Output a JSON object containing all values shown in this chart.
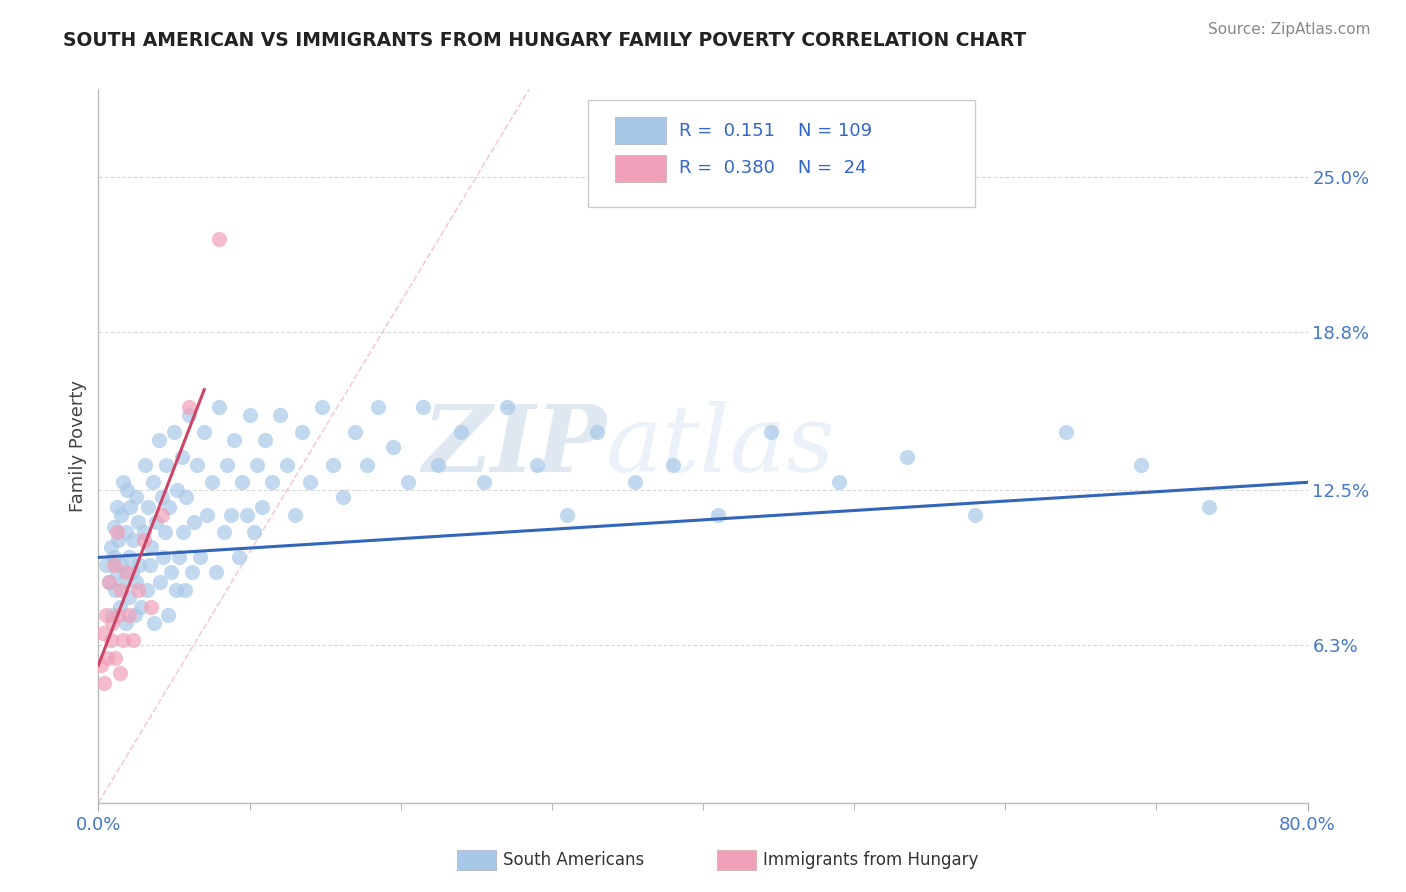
{
  "title": "SOUTH AMERICAN VS IMMIGRANTS FROM HUNGARY FAMILY POVERTY CORRELATION CHART",
  "source": "Source: ZipAtlas.com",
  "ylabel": "Family Poverty",
  "xlim": [
    0.0,
    0.8
  ],
  "ylim": [
    0.0,
    0.285
  ],
  "ytick_labels_right": [
    "25.0%",
    "18.8%",
    "12.5%",
    "6.3%"
  ],
  "ytick_values_right": [
    0.25,
    0.188,
    0.125,
    0.063
  ],
  "blue_color": "#a8c8e8",
  "pink_color": "#f0a0b8",
  "blue_line_color": "#3366bb",
  "pink_line_color": "#cc4466",
  "diagonal_line_color": "#f0c0cc",
  "watermark_color": "#d0dff0",
  "background_color": "#ffffff",
  "grid_color": "#d0d0d0",
  "title_color": "#222222",
  "blue_x": [
    0.005,
    0.007,
    0.008,
    0.009,
    0.01,
    0.01,
    0.011,
    0.012,
    0.012,
    0.013,
    0.014,
    0.015,
    0.015,
    0.016,
    0.017,
    0.018,
    0.018,
    0.019,
    0.02,
    0.02,
    0.021,
    0.022,
    0.023,
    0.024,
    0.025,
    0.025,
    0.026,
    0.027,
    0.028,
    0.03,
    0.031,
    0.032,
    0.033,
    0.034,
    0.035,
    0.036,
    0.037,
    0.038,
    0.04,
    0.041,
    0.042,
    0.043,
    0.044,
    0.045,
    0.046,
    0.047,
    0.048,
    0.05,
    0.051,
    0.052,
    0.053,
    0.055,
    0.056,
    0.057,
    0.058,
    0.06,
    0.062,
    0.063,
    0.065,
    0.067,
    0.07,
    0.072,
    0.075,
    0.078,
    0.08,
    0.083,
    0.085,
    0.088,
    0.09,
    0.093,
    0.095,
    0.098,
    0.1,
    0.103,
    0.105,
    0.108,
    0.11,
    0.115,
    0.12,
    0.125,
    0.13,
    0.135,
    0.14,
    0.148,
    0.155,
    0.162,
    0.17,
    0.178,
    0.185,
    0.195,
    0.205,
    0.215,
    0.225,
    0.24,
    0.255,
    0.27,
    0.29,
    0.31,
    0.33,
    0.355,
    0.38,
    0.41,
    0.445,
    0.49,
    0.535,
    0.58,
    0.64,
    0.69,
    0.735
  ],
  "blue_y": [
    0.095,
    0.088,
    0.102,
    0.075,
    0.11,
    0.098,
    0.085,
    0.118,
    0.092,
    0.105,
    0.078,
    0.115,
    0.095,
    0.128,
    0.088,
    0.108,
    0.072,
    0.125,
    0.098,
    0.082,
    0.118,
    0.092,
    0.105,
    0.075,
    0.122,
    0.088,
    0.112,
    0.095,
    0.078,
    0.108,
    0.135,
    0.085,
    0.118,
    0.095,
    0.102,
    0.128,
    0.072,
    0.112,
    0.145,
    0.088,
    0.122,
    0.098,
    0.108,
    0.135,
    0.075,
    0.118,
    0.092,
    0.148,
    0.085,
    0.125,
    0.098,
    0.138,
    0.108,
    0.085,
    0.122,
    0.155,
    0.092,
    0.112,
    0.135,
    0.098,
    0.148,
    0.115,
    0.128,
    0.092,
    0.158,
    0.108,
    0.135,
    0.115,
    0.145,
    0.098,
    0.128,
    0.115,
    0.155,
    0.108,
    0.135,
    0.118,
    0.145,
    0.128,
    0.155,
    0.135,
    0.115,
    0.148,
    0.128,
    0.158,
    0.135,
    0.122,
    0.148,
    0.135,
    0.158,
    0.142,
    0.128,
    0.158,
    0.135,
    0.148,
    0.128,
    0.158,
    0.135,
    0.115,
    0.148,
    0.128,
    0.135,
    0.115,
    0.148,
    0.128,
    0.138,
    0.115,
    0.148,
    0.135,
    0.118
  ],
  "pink_x": [
    0.002,
    0.003,
    0.004,
    0.005,
    0.006,
    0.007,
    0.008,
    0.009,
    0.01,
    0.011,
    0.012,
    0.013,
    0.014,
    0.015,
    0.016,
    0.018,
    0.02,
    0.023,
    0.026,
    0.03,
    0.035,
    0.042,
    0.06,
    0.08
  ],
  "pink_y": [
    0.055,
    0.068,
    0.048,
    0.075,
    0.058,
    0.088,
    0.065,
    0.072,
    0.095,
    0.058,
    0.108,
    0.075,
    0.052,
    0.085,
    0.065,
    0.092,
    0.075,
    0.065,
    0.085,
    0.105,
    0.078,
    0.115,
    0.158,
    0.225
  ],
  "blue_line_x": [
    0.0,
    0.8
  ],
  "blue_line_y": [
    0.098,
    0.128
  ],
  "pink_line_x": [
    0.0,
    0.07
  ],
  "pink_line_y": [
    0.055,
    0.165
  ],
  "diag_line_x": [
    0.0,
    0.285
  ],
  "diag_line_y": [
    0.0,
    0.285
  ]
}
